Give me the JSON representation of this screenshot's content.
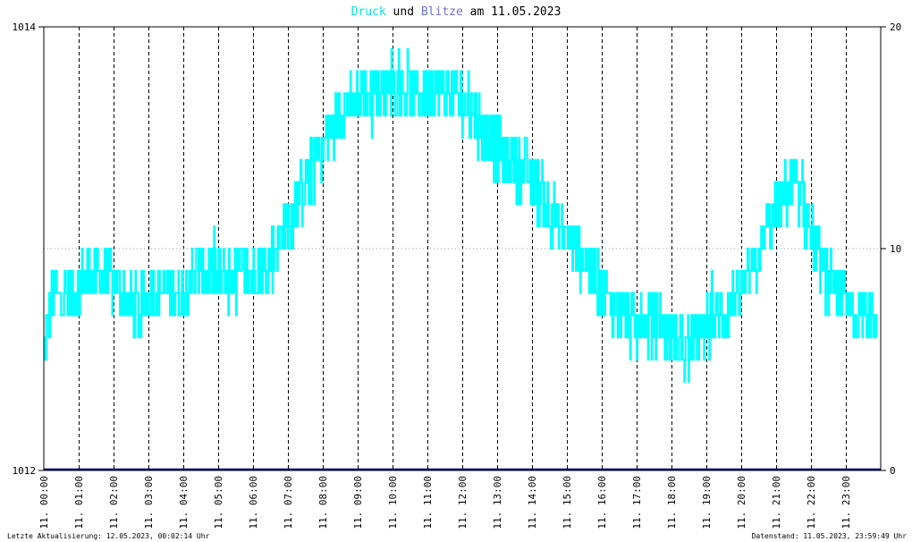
{
  "title": {
    "part1": "Druck",
    "part2": " und ",
    "part3": "Blitze",
    "part4": " am 11.05.2023"
  },
  "colors": {
    "druck": "#00ffff",
    "blitze": "#000080",
    "title_druck": "#00e5e5",
    "title_blitze": "#7070d0",
    "grid": "#000000"
  },
  "footer": {
    "left": "Letzte Aktualisierung: 12.05.2023, 00:02:14 Uhr",
    "right": "Datenstand: 11.05.2023, 23:59:49 Uhr"
  },
  "chart_data": {
    "type": "line",
    "x_range": [
      "11.05.2023 00:00",
      "11.05.2023 24:00"
    ],
    "x_tick_labels": [
      "11. 00:00",
      "11. 01:00",
      "11. 02:00",
      "11. 03:00",
      "11. 04:00",
      "11. 05:00",
      "11. 06:00",
      "11. 07:00",
      "11. 08:00",
      "11. 09:00",
      "11. 10:00",
      "11. 11:00",
      "11. 12:00",
      "11. 13:00",
      "11. 14:00",
      "11. 15:00",
      "11. 16:00",
      "11. 17:00",
      "11. 18:00",
      "11. 19:00",
      "11. 20:00",
      "11. 21:00",
      "11. 22:00",
      "11. 23:00"
    ],
    "y_left": {
      "min": 1012,
      "max": 1014,
      "tick_labels": [
        "1014",
        "1012"
      ]
    },
    "y_right": {
      "min": 0,
      "max": 20,
      "tick_labels": [
        "20",
        "10",
        "0"
      ]
    },
    "series": [
      {
        "name": "Druck",
        "axis": "left",
        "note_points_hour_value": true,
        "points": [
          [
            0.0,
            1012.5
          ],
          [
            0.1,
            1012.65
          ],
          [
            0.25,
            1012.78
          ],
          [
            0.5,
            1012.8
          ],
          [
            0.75,
            1012.8
          ],
          [
            1.0,
            1012.82
          ],
          [
            1.25,
            1012.88
          ],
          [
            1.5,
            1012.9
          ],
          [
            1.75,
            1012.88
          ],
          [
            2.0,
            1012.85
          ],
          [
            2.25,
            1012.8
          ],
          [
            2.5,
            1012.75
          ],
          [
            2.75,
            1012.72
          ],
          [
            3.0,
            1012.78
          ],
          [
            3.25,
            1012.8
          ],
          [
            3.5,
            1012.82
          ],
          [
            3.75,
            1012.78
          ],
          [
            4.0,
            1012.8
          ],
          [
            4.25,
            1012.9
          ],
          [
            4.5,
            1012.92
          ],
          [
            4.75,
            1012.9
          ],
          [
            5.0,
            1012.88
          ],
          [
            5.25,
            1012.86
          ],
          [
            5.5,
            1012.88
          ],
          [
            5.75,
            1012.9
          ],
          [
            6.0,
            1012.88
          ],
          [
            6.25,
            1012.92
          ],
          [
            6.5,
            1012.96
          ],
          [
            6.75,
            1013.05
          ],
          [
            7.0,
            1013.12
          ],
          [
            7.25,
            1013.2
          ],
          [
            7.5,
            1013.3
          ],
          [
            7.75,
            1013.38
          ],
          [
            8.0,
            1013.45
          ],
          [
            8.25,
            1013.55
          ],
          [
            8.5,
            1013.62
          ],
          [
            8.75,
            1013.65
          ],
          [
            9.0,
            1013.68
          ],
          [
            9.25,
            1013.7
          ],
          [
            9.5,
            1013.7
          ],
          [
            9.75,
            1013.72
          ],
          [
            10.0,
            1013.75
          ],
          [
            10.25,
            1013.72
          ],
          [
            10.5,
            1013.7
          ],
          [
            10.75,
            1013.7
          ],
          [
            11.0,
            1013.72
          ],
          [
            11.25,
            1013.75
          ],
          [
            11.5,
            1013.72
          ],
          [
            11.75,
            1013.7
          ],
          [
            12.0,
            1013.65
          ],
          [
            12.25,
            1013.62
          ],
          [
            12.5,
            1013.55
          ],
          [
            12.75,
            1013.5
          ],
          [
            13.0,
            1013.45
          ],
          [
            13.25,
            1013.42
          ],
          [
            13.5,
            1013.38
          ],
          [
            13.75,
            1013.35
          ],
          [
            14.0,
            1013.3
          ],
          [
            14.25,
            1013.25
          ],
          [
            14.5,
            1013.18
          ],
          [
            14.75,
            1013.1
          ],
          [
            15.0,
            1013.05
          ],
          [
            15.25,
            1013.0
          ],
          [
            15.5,
            1012.95
          ],
          [
            15.75,
            1012.88
          ],
          [
            16.0,
            1012.82
          ],
          [
            16.25,
            1012.75
          ],
          [
            16.5,
            1012.7
          ],
          [
            16.75,
            1012.68
          ],
          [
            17.0,
            1012.65
          ],
          [
            17.25,
            1012.66
          ],
          [
            17.5,
            1012.65
          ],
          [
            17.75,
            1012.64
          ],
          [
            18.0,
            1012.62
          ],
          [
            18.25,
            1012.58
          ],
          [
            18.5,
            1012.55
          ],
          [
            18.75,
            1012.6
          ],
          [
            19.0,
            1012.65
          ],
          [
            19.25,
            1012.7
          ],
          [
            19.5,
            1012.72
          ],
          [
            19.75,
            1012.75
          ],
          [
            20.0,
            1012.8
          ],
          [
            20.25,
            1012.88
          ],
          [
            20.5,
            1012.98
          ],
          [
            20.75,
            1013.08
          ],
          [
            21.0,
            1013.18
          ],
          [
            21.25,
            1013.25
          ],
          [
            21.5,
            1013.28
          ],
          [
            21.75,
            1013.2
          ],
          [
            22.0,
            1013.05
          ],
          [
            22.25,
            1012.92
          ],
          [
            22.5,
            1012.85
          ],
          [
            22.75,
            1012.8
          ],
          [
            23.0,
            1012.75
          ],
          [
            23.25,
            1012.7
          ]
        ]
      },
      {
        "name": "Blitze",
        "axis": "right",
        "values": [
          0,
          0
        ]
      }
    ],
    "grid": true,
    "legend": "none (title colored)"
  }
}
